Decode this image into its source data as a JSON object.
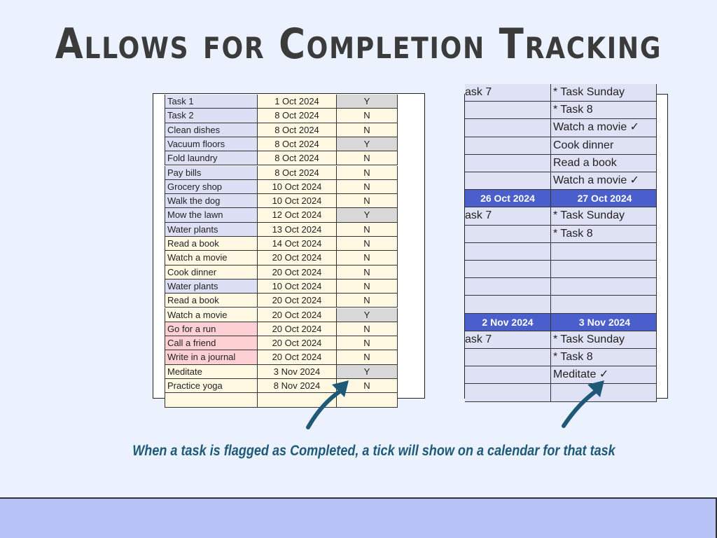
{
  "title": "Allows for Completion Tracking",
  "caption": "When a task is flagged as Completed, a tick will show on a calendar for that task",
  "colors": {
    "task_blue": "#dde0f5",
    "cream": "#fff8e3",
    "pink": "#fdd0d3",
    "completed_gray": "#d9d9d9",
    "header_blue": "#4a5fcb",
    "accent": "#1e5a78",
    "band": "#b7c2f6"
  },
  "task_table": [
    {
      "task": "Task 1",
      "date": "1 Oct 2024",
      "done": "Y",
      "color": "blue"
    },
    {
      "task": "Task 2",
      "date": "8 Oct 2024",
      "done": "N",
      "color": "blue"
    },
    {
      "task": "Clean dishes",
      "date": "8 Oct 2024",
      "done": "N",
      "color": "blue"
    },
    {
      "task": "Vacuum floors",
      "date": "8 Oct 2024",
      "done": "Y",
      "color": "blue"
    },
    {
      "task": "Fold laundry",
      "date": "8 Oct 2024",
      "done": "N",
      "color": "blue"
    },
    {
      "task": "Pay bills",
      "date": "8 Oct 2024",
      "done": "N",
      "color": "blue"
    },
    {
      "task": "Grocery shop",
      "date": "10 Oct 2024",
      "done": "N",
      "color": "blue"
    },
    {
      "task": "Walk the dog",
      "date": "10 Oct 2024",
      "done": "N",
      "color": "blue"
    },
    {
      "task": "Mow the lawn",
      "date": "12 Oct 2024",
      "done": "Y",
      "color": "blue"
    },
    {
      "task": "Water plants",
      "date": "13 Oct 2024",
      "done": "N",
      "color": "blue"
    },
    {
      "task": "Read a book",
      "date": "14 Oct 2024",
      "done": "N",
      "color": "cream"
    },
    {
      "task": "Watch a movie",
      "date": "20 Oct 2024",
      "done": "N",
      "color": "cream"
    },
    {
      "task": "Cook dinner",
      "date": "20 Oct 2024",
      "done": "N",
      "color": "cream"
    },
    {
      "task": "Water plants",
      "date": "10 Oct 2024",
      "done": "N",
      "color": "blue"
    },
    {
      "task": "Read a book",
      "date": "20 Oct 2024",
      "done": "N",
      "color": "cream"
    },
    {
      "task": "Watch a movie",
      "date": "20 Oct 2024",
      "done": "Y",
      "color": "cream"
    },
    {
      "task": "Go for a run",
      "date": "20 Oct 2024",
      "done": "N",
      "color": "pink"
    },
    {
      "task": "Call a friend",
      "date": "20 Oct 2024",
      "done": "N",
      "color": "pink"
    },
    {
      "task": "Write in a journal",
      "date": "20 Oct 2024",
      "done": "N",
      "color": "pink"
    },
    {
      "task": "Meditate",
      "date": "3 Nov 2024",
      "done": "Y",
      "color": "cream"
    },
    {
      "task": "Practice yoga",
      "date": "8 Nov 2024",
      "done": "N",
      "color": "cream"
    },
    {
      "task": "",
      "date": "",
      "done": "",
      "color": "cream"
    }
  ],
  "calendar": [
    {
      "a": "ask 7",
      "b": "* Task Sunday"
    },
    {
      "a": "",
      "b": "* Task 8"
    },
    {
      "a": "",
      "b": "Watch a movie ✓"
    },
    {
      "a": "",
      "b": "Cook dinner"
    },
    {
      "a": "",
      "b": "Read a book"
    },
    {
      "a": "",
      "b": "Watch a movie ✓"
    },
    {
      "a": "26 Oct 2024",
      "b": "27 Oct 2024",
      "header": true
    },
    {
      "a": "ask 7",
      "b": "* Task Sunday"
    },
    {
      "a": "",
      "b": "* Task 8"
    },
    {
      "a": "",
      "b": ""
    },
    {
      "a": "",
      "b": ""
    },
    {
      "a": "",
      "b": ""
    },
    {
      "a": "",
      "b": ""
    },
    {
      "a": "2 Nov 2024",
      "b": "3 Nov 2024",
      "header": true
    },
    {
      "a": "ask 7",
      "b": "* Task Sunday"
    },
    {
      "a": "",
      "b": "* Task 8"
    },
    {
      "a": "",
      "b": "Meditate ✓"
    },
    {
      "a": "",
      "b": ""
    }
  ]
}
